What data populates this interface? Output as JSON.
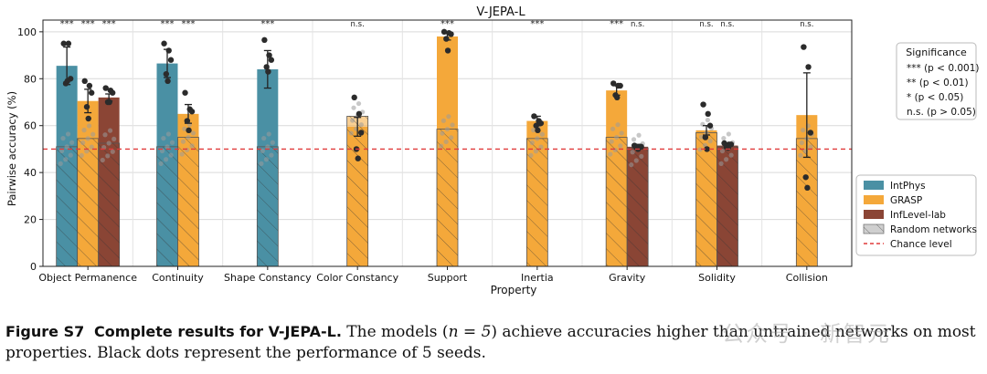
{
  "chart_data": {
    "type": "bar",
    "title": "V-JEPA-L",
    "xlabel": "Property",
    "ylabel": "Pairwise accuracy (%)",
    "ylim": [
      0,
      105
    ],
    "yticks": [
      0,
      20,
      40,
      60,
      80,
      100
    ],
    "chance_level": 50,
    "categories": [
      "Object Permanence",
      "Continuity",
      "Shape Constancy",
      "Color Constancy",
      "Support",
      "Inertia",
      "Gravity",
      "Solidity",
      "Collision"
    ],
    "series": [
      {
        "name": "IntPhys",
        "color": "#4a90a4",
        "values": [
          85.5,
          86.5,
          84,
          null,
          null,
          null,
          null,
          null,
          null
        ],
        "errors": [
          8,
          6,
          8,
          null,
          null,
          null,
          null,
          null,
          null
        ],
        "random": [
          51,
          51,
          51,
          null,
          null,
          null,
          null,
          null,
          null
        ],
        "significance": [
          "***",
          "***",
          "***",
          null,
          null,
          null,
          null,
          null,
          null
        ]
      },
      {
        "name": "GRASP",
        "color": "#f4a83a",
        "values": [
          70.5,
          65,
          null,
          59.5,
          98,
          62,
          75,
          58,
          64.5
        ],
        "errors": [
          5,
          4,
          null,
          4,
          1.5,
          2,
          2,
          2,
          18
        ],
        "random": [
          54.5,
          55,
          null,
          64,
          58.5,
          54.5,
          55,
          57,
          54.5
        ],
        "significance": [
          "***",
          "***",
          null,
          "n.s.",
          "***",
          "***",
          "***",
          "n.s.",
          "n.s."
        ]
      },
      {
        "name": "InfLevel-lab",
        "color": "#8b4535",
        "values": [
          72,
          null,
          null,
          null,
          null,
          null,
          51,
          51.5,
          null
        ],
        "errors": [
          1.5,
          null,
          null,
          null,
          null,
          null,
          1,
          1,
          null
        ],
        "random": [
          52.5,
          null,
          null,
          null,
          null,
          null,
          50.5,
          51,
          null
        ],
        "significance": [
          "***",
          null,
          null,
          null,
          null,
          null,
          "n.s.",
          "n.s.",
          null
        ]
      }
    ],
    "seeds": {
      "IntPhys": [
        [
          95,
          95,
          80,
          78,
          79
        ],
        [
          95,
          92,
          88,
          82,
          79
        ],
        [
          96.5,
          90,
          88,
          85,
          83
        ],
        null,
        null,
        null,
        null,
        null,
        null
      ],
      "GRASP": [
        [
          79,
          77,
          74,
          68,
          63
        ],
        [
          74,
          67,
          66,
          62,
          58
        ],
        null,
        [
          72,
          65,
          57,
          50,
          46
        ],
        [
          100,
          99.5,
          99,
          97,
          92
        ],
        [
          64,
          62,
          61,
          60,
          58
        ],
        [
          78,
          77,
          77,
          73,
          72
        ],
        [
          69,
          65,
          60,
          55,
          50
        ],
        [
          93.5,
          85,
          57,
          38,
          33.5
        ]
      ],
      "InfLevel-lab": [
        [
          76,
          75,
          74,
          70,
          70
        ],
        null,
        null,
        null,
        null,
        null,
        [
          51.5,
          51,
          51,
          51,
          50
        ],
        [
          52.5,
          52,
          52,
          51,
          50.5
        ],
        null
      ]
    },
    "legend": {
      "placement": "right",
      "significance_title": "Significance",
      "significance_items": [
        "*** (p < 0.001)",
        "** (p < 0.01)",
        "* (p < 0.05)",
        "n.s. (p > 0.05)"
      ],
      "items": [
        "IntPhys",
        "GRASP",
        "InfLevel-lab",
        "Random networks",
        "Chance level"
      ]
    }
  },
  "caption": {
    "figure_label": "Figure S7",
    "title": "Complete results for V-JEPA-L.",
    "text_before_n": " The models (",
    "n_expr": "n = 5",
    "text_after_n": ") achieve accuracies higher than untrained networks on most properties. Black dots represent the performance of 5 seeds."
  },
  "watermark": "公众号 · 新智元"
}
